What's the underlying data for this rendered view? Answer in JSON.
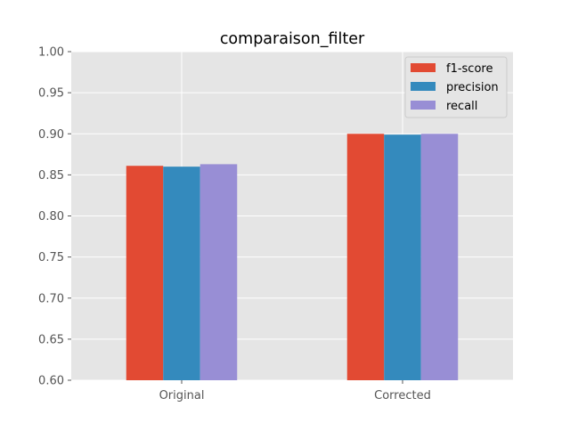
{
  "chart_data": {
    "type": "bar",
    "title": "comparaison_filter",
    "xlabel": "",
    "ylabel": "",
    "categories": [
      "Original",
      "Corrected"
    ],
    "series": [
      {
        "name": "f1-score",
        "values": [
          0.861,
          0.9
        ],
        "color": "#e24a33"
      },
      {
        "name": "precision",
        "values": [
          0.86,
          0.899
        ],
        "color": "#348abd"
      },
      {
        "name": "recall",
        "values": [
          0.863,
          0.9
        ],
        "color": "#988ed5"
      }
    ],
    "ylim": [
      0.6,
      1.0
    ],
    "yticks": [
      "0.60",
      "0.65",
      "0.70",
      "0.75",
      "0.80",
      "0.85",
      "0.90",
      "0.95",
      "1.00"
    ],
    "grid": true,
    "legend_position": "top-right",
    "plot_background": "#e5e5e5",
    "grid_color": "#ffffff"
  }
}
